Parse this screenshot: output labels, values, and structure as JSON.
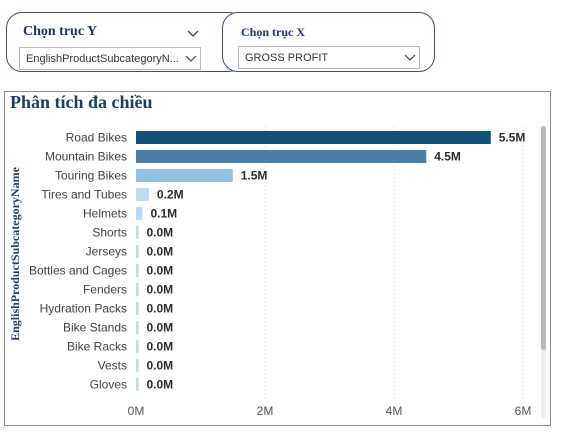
{
  "slicer_y": {
    "title": "Chọn trục Y",
    "value": "EnglishProductSubcategoryN...",
    "chevron_icon": "chevron-down-icon"
  },
  "slicer_x": {
    "title": "Chọn trục X",
    "value": "GROSS PROFIT",
    "chevron_icon": "chevron-down-icon"
  },
  "visual": {
    "title": "Phân tích đa chiều"
  },
  "chart_data": {
    "type": "bar",
    "orientation": "horizontal",
    "title": "Phân tích đa chiều",
    "ylabel": "EnglishProductSubcategoryName",
    "xlabel": "",
    "categories": [
      "Road Bikes",
      "Mountain Bikes",
      "Touring Bikes",
      "Tires and Tubes",
      "Helmets",
      "Shorts",
      "Jerseys",
      "Bottles and Cages",
      "Fenders",
      "Hydration Packs",
      "Bike Stands",
      "Bike Racks",
      "Vests",
      "Gloves"
    ],
    "values": [
      5.5,
      4.5,
      1.5,
      0.2,
      0.1,
      0.01,
      0.01,
      0.01,
      0.01,
      0.01,
      0.01,
      0.01,
      0.01,
      0.01
    ],
    "value_unit": "M",
    "data_labels": [
      "5.5M",
      "4.5M",
      "1.5M",
      "0.2M",
      "0.1M",
      "0.0M",
      "0.0M",
      "0.0M",
      "0.0M",
      "0.0M",
      "0.0M",
      "0.0M",
      "0.0M",
      "0.0M"
    ],
    "xticks": [
      0,
      2,
      4,
      6
    ],
    "xtick_labels": [
      "0M",
      "2M",
      "4M",
      "6M"
    ],
    "xlim": [
      0,
      6
    ],
    "grid": "vertical-dotted",
    "colors": [
      "#12517a",
      "#4a7fa8",
      "#93bfe0",
      "#bcdaf3",
      "#bcdaf3",
      "#bcdaf3",
      "#bcdaf3",
      "#bcdaf3",
      "#bcdaf3",
      "#bcdaf3",
      "#bcdaf3",
      "#bcdaf3",
      "#bcdaf3",
      "#bcdaf3"
    ]
  }
}
